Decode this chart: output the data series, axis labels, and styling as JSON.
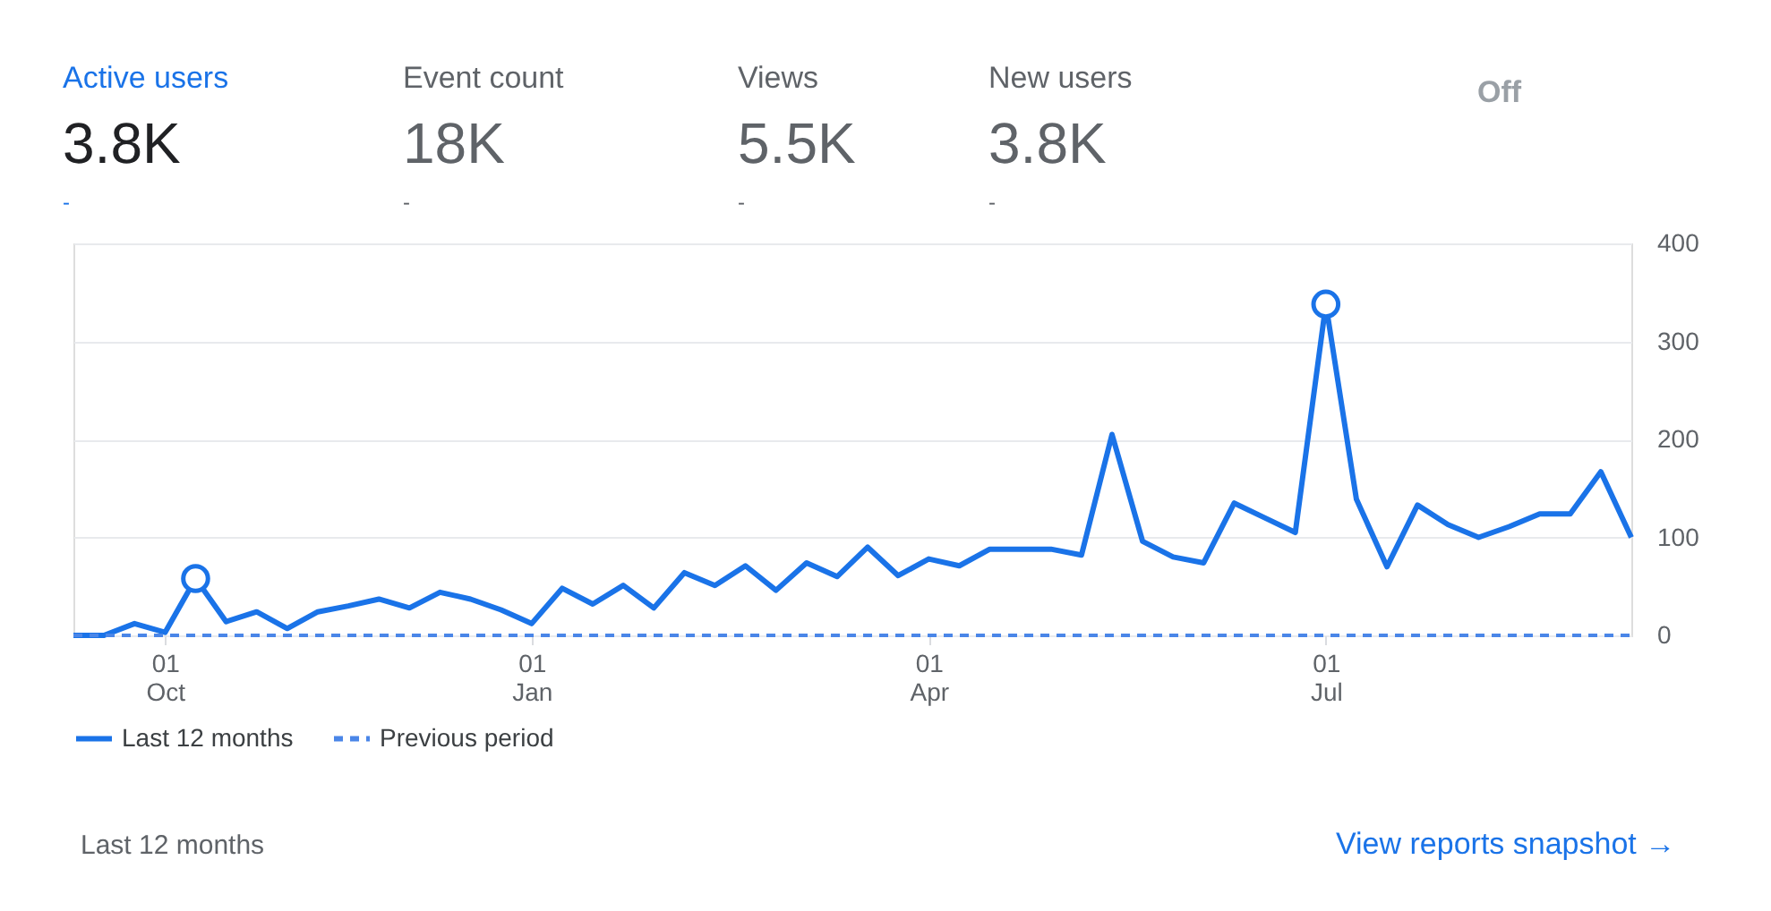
{
  "chart_data": {
    "type": "line",
    "categories": [
      null,
      null,
      null,
      "01\nOct",
      null,
      null,
      null,
      null,
      null,
      null,
      null,
      null,
      null,
      null,
      null,
      "01\nJan",
      null,
      null,
      null,
      null,
      null,
      null,
      null,
      null,
      null,
      null,
      null,
      null,
      "01\nApr",
      null,
      null,
      null,
      null,
      null,
      null,
      null,
      null,
      null,
      null,
      null,
      null,
      "01\nJul",
      null,
      null,
      null,
      null,
      null,
      null,
      null,
      null,
      null,
      null
    ],
    "series": [
      {
        "name": "Last 12 months",
        "color": "#1a73e8",
        "line_style": "solid",
        "values": [
          0,
          0,
          12,
          3,
          58,
          14,
          24,
          7,
          24,
          30,
          37,
          28,
          44,
          37,
          26,
          12,
          48,
          32,
          51,
          28,
          64,
          51,
          71,
          46,
          74,
          60,
          90,
          61,
          78,
          71,
          88,
          88,
          88,
          82,
          205,
          96,
          80,
          74,
          135,
          120,
          105,
          338,
          139,
          70,
          133,
          113,
          100,
          111,
          124,
          124,
          167,
          100
        ]
      },
      {
        "name": "Previous period",
        "color": "#4a86e8",
        "line_style": "dashed",
        "values": [
          0,
          0,
          0,
          0,
          0,
          0,
          0,
          0,
          0,
          0,
          0,
          0,
          0,
          0,
          0,
          0,
          0,
          0,
          0,
          0,
          0,
          0,
          0,
          0,
          0,
          0,
          0,
          0,
          0,
          0,
          0,
          0,
          0,
          0,
          0,
          0,
          0,
          0,
          0,
          0,
          0,
          0,
          0,
          0,
          0,
          0,
          0,
          0,
          0,
          0,
          0,
          0
        ]
      },
      {
        "type": "scatter",
        "color": "#1a73e8",
        "marker": "circle",
        "values": [
          null,
          null,
          null,
          null,
          58,
          null,
          null,
          null,
          null,
          null,
          null,
          null,
          null,
          null,
          null,
          null,
          null,
          null,
          null,
          null,
          null,
          null,
          null,
          null,
          null,
          null,
          null,
          null,
          null,
          null,
          null,
          null,
          null,
          null,
          null,
          null,
          null,
          null,
          null,
          null,
          null,
          338,
          null,
          null,
          null,
          null,
          null,
          null,
          null,
          null,
          null,
          null
        ]
      }
    ],
    "ylim": [
      0,
      400
    ],
    "yticks": [
      0,
      100,
      200,
      300,
      400
    ],
    "grid": "y",
    "legend": "bottom",
    "marker": "none",
    "annotations": [
      "Active users",
      "3.8K",
      "-",
      "Event count",
      "18K",
      "-",
      "Views",
      "5.5K",
      "-",
      "New users",
      "3.8K",
      "-",
      "Off",
      "Last 12 months",
      "View reports snapshot →"
    ]
  }
}
